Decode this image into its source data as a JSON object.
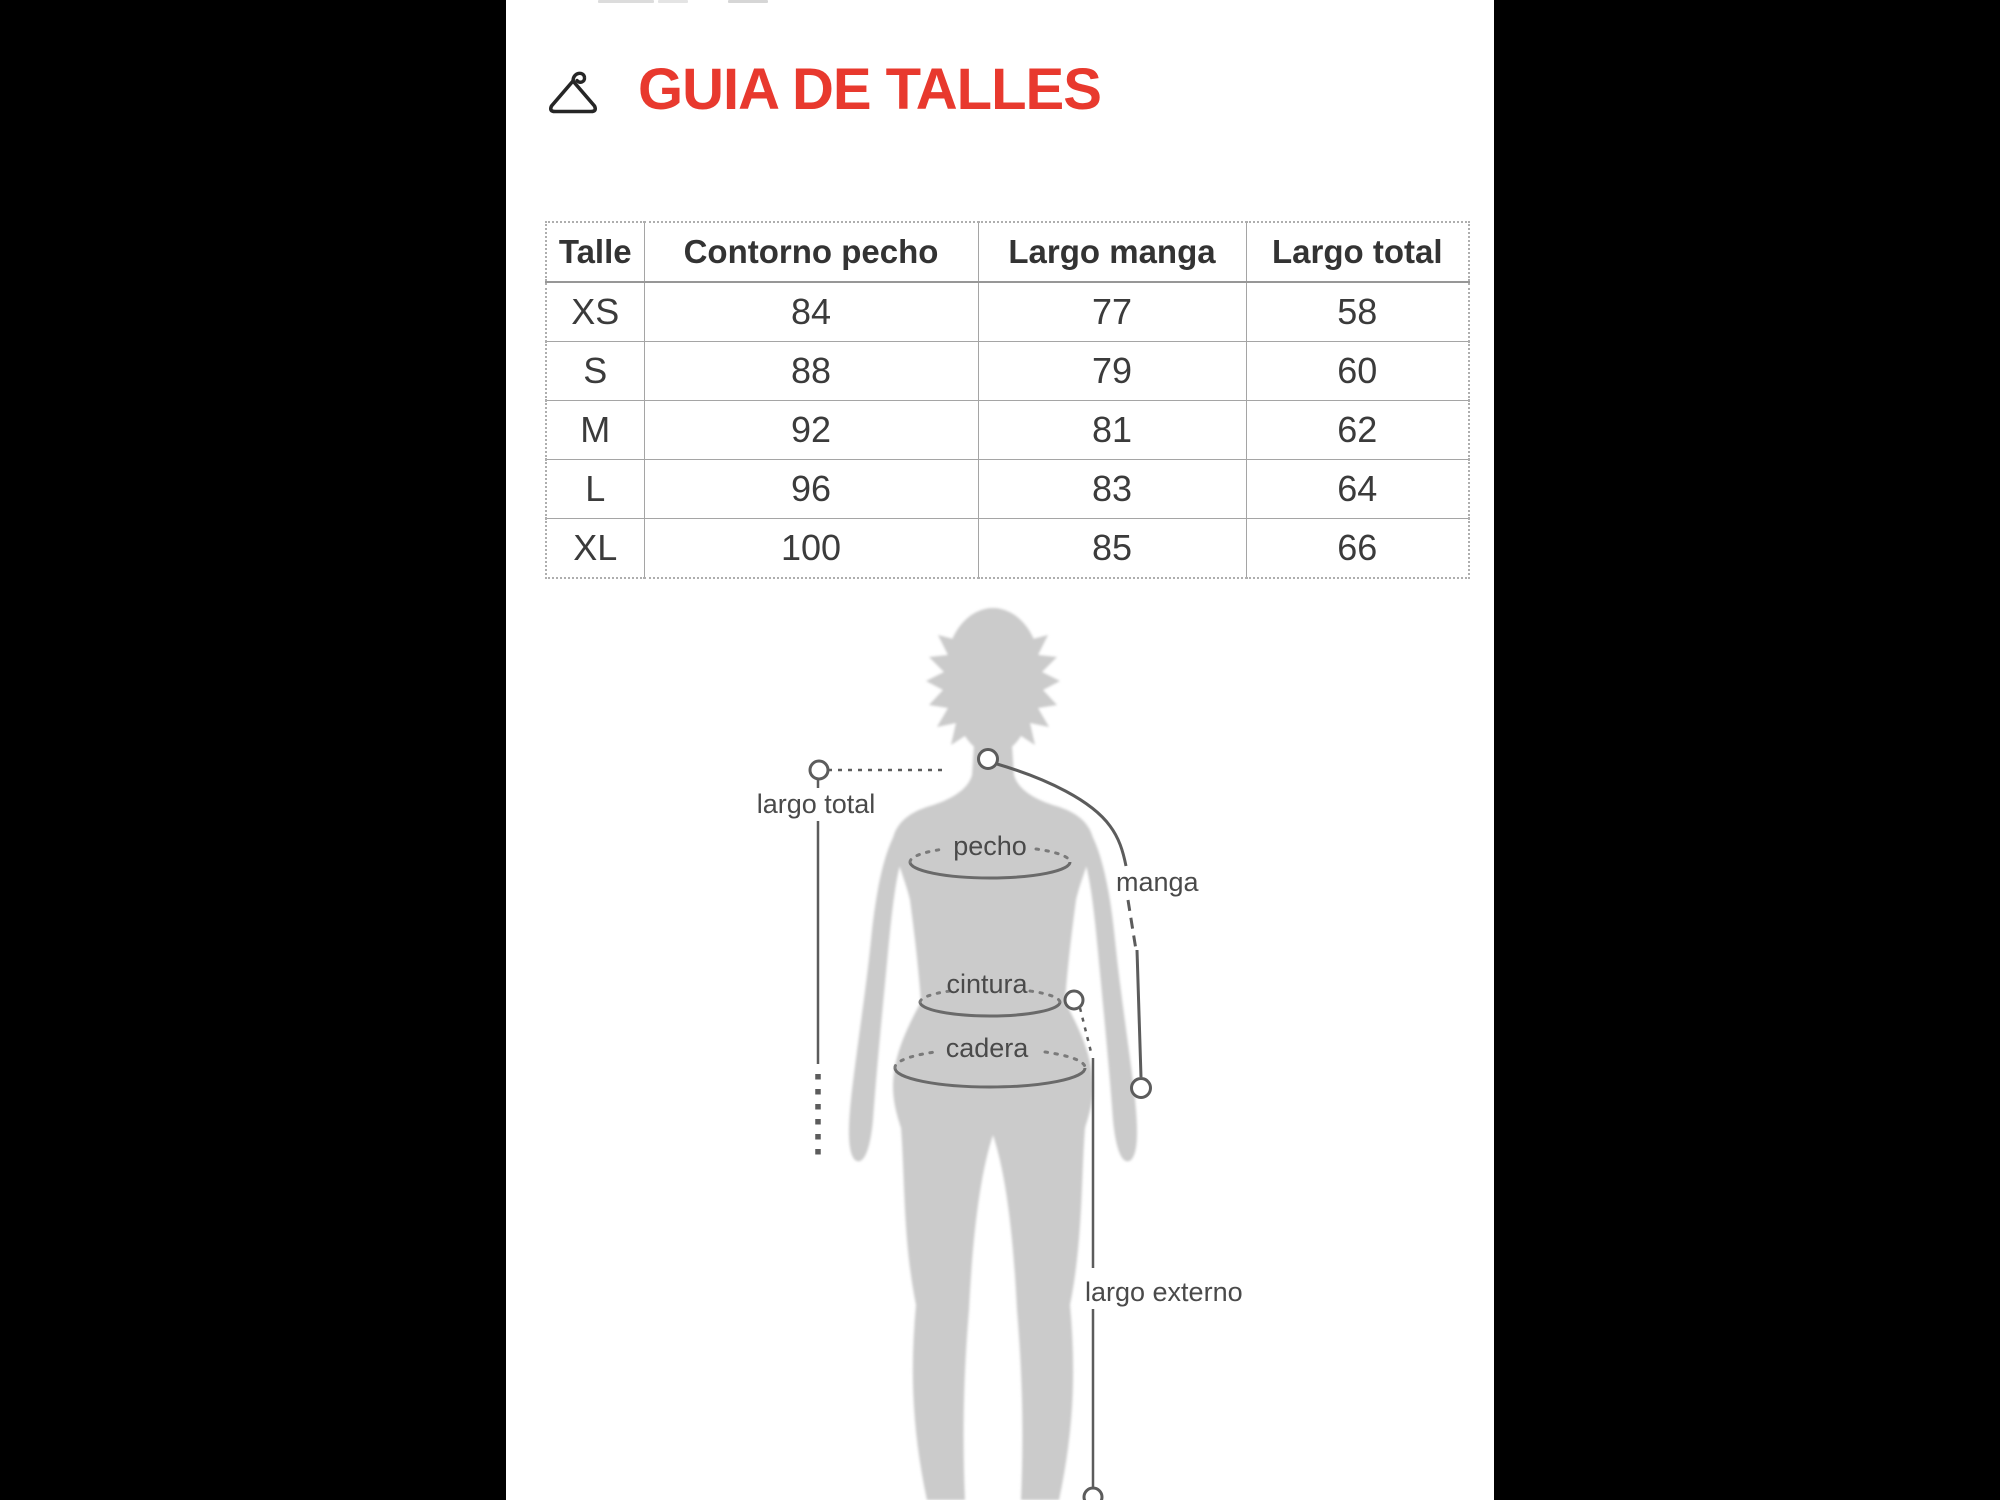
{
  "header": {
    "title": "GUIA DE TALLES",
    "icon": "hanger-icon",
    "accent_color": "#e8392e"
  },
  "size_table": {
    "columns": [
      "Talle",
      "Contorno pecho",
      "Largo manga",
      "Largo total"
    ],
    "rows": [
      [
        "XS",
        "84",
        "77",
        "58"
      ],
      [
        "S",
        "88",
        "79",
        "60"
      ],
      [
        "M",
        "92",
        "81",
        "62"
      ],
      [
        "L",
        "96",
        "83",
        "64"
      ],
      [
        "XL",
        "100",
        "85",
        "66"
      ]
    ]
  },
  "diagram": {
    "labels": {
      "largo_total": "largo total",
      "pecho": "pecho",
      "manga": "manga",
      "cintura": "cintura",
      "cadera": "cadera",
      "largo_externo": "largo externo"
    },
    "silhouette_color": "#cbcbcb",
    "line_color": "#5c5c5c"
  }
}
